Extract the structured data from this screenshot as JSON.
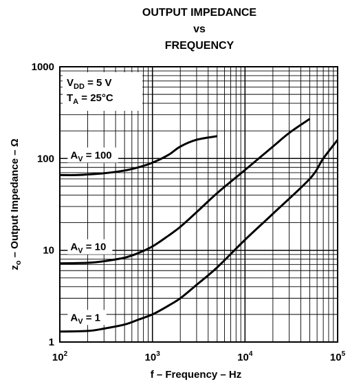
{
  "chart_data": {
    "type": "line",
    "title": [
      "OUTPUT IMPEDANCE",
      "vs",
      "FREQUENCY"
    ],
    "xlabel": "f – Frequency – Hz",
    "ylabel": {
      "main": "z",
      "sub": "o",
      "rest": " – Output Impedance – Ω"
    },
    "xscale": "log",
    "yscale": "log",
    "xlim": [
      100,
      100000
    ],
    "ylim": [
      1,
      1000
    ],
    "grid": true,
    "x_ticks": [
      {
        "value": 100,
        "base": "10",
        "exp": "2"
      },
      {
        "value": 1000,
        "base": "10",
        "exp": "3"
      },
      {
        "value": 10000,
        "base": "10",
        "exp": "4"
      },
      {
        "value": 100000,
        "base": "10",
        "exp": "5"
      }
    ],
    "y_ticks": [
      {
        "value": 1,
        "label": "1"
      },
      {
        "value": 10,
        "label": "10"
      },
      {
        "value": 100,
        "label": "100"
      },
      {
        "value": 1000,
        "label": "1000"
      }
    ],
    "conditions": [
      {
        "main": "V",
        "sub": "DD",
        "rest": " = 5 V"
      },
      {
        "main": "T",
        "sub": "A",
        "rest": " = 25°C"
      }
    ],
    "series": [
      {
        "name": {
          "main": "A",
          "sub": "V",
          "rest": " = 100"
        },
        "label_at": [
          130,
          100
        ],
        "x": [
          100,
          150,
          200,
          300,
          500,
          700,
          1000,
          1500,
          2000,
          3000,
          5000
        ],
        "y": [
          66,
          66,
          67,
          69,
          74,
          80,
          90,
          110,
          135,
          160,
          175
        ]
      },
      {
        "name": {
          "main": "A",
          "sub": "V",
          "rest": " = 10"
        },
        "label_at": [
          130,
          10
        ],
        "x": [
          100,
          200,
          300,
          500,
          700,
          1000,
          1500,
          2000,
          3000,
          5000,
          10000,
          20000,
          30000,
          50000
        ],
        "y": [
          7.2,
          7.3,
          7.6,
          8.3,
          9.3,
          11,
          14.5,
          18,
          26,
          42,
          75,
          135,
          190,
          270
        ]
      },
      {
        "name": {
          "main": "A",
          "sub": "V",
          "rest": " = 1"
        },
        "label_at": [
          130,
          1.7
        ],
        "x": [
          100,
          200,
          300,
          500,
          700,
          1000,
          1500,
          2000,
          3000,
          5000,
          10000,
          20000,
          50000,
          70000,
          100000
        ],
        "y": [
          1.3,
          1.32,
          1.4,
          1.55,
          1.75,
          2.0,
          2.5,
          3.0,
          4.2,
          6.5,
          13,
          25,
          60,
          100,
          160
        ]
      }
    ]
  }
}
